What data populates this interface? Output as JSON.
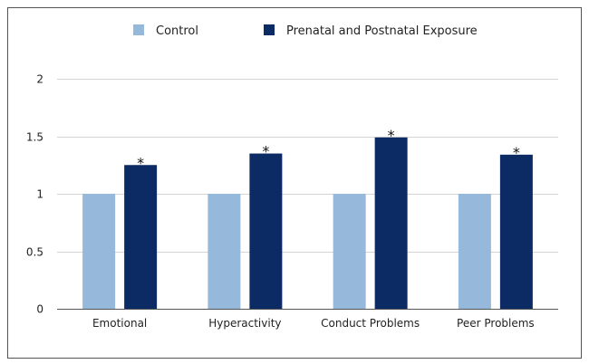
{
  "chart_data": {
    "type": "bar",
    "title": "",
    "xlabel": "",
    "ylabel": "",
    "categories": [
      "Emotional",
      "Hyperactivity",
      "Conduct Problems",
      "Peer Problems"
    ],
    "series": [
      {
        "name": "Control",
        "color": "#95b8db",
        "values": [
          1,
          1,
          1,
          1
        ]
      },
      {
        "name": "Prenatal and Postnatal Exposure",
        "color": "#0c2a63",
        "values": [
          1.25,
          1.35,
          1.49,
          1.34
        ]
      }
    ],
    "annotations": [
      "*",
      "*",
      "*",
      "*"
    ],
    "yticks": [
      "0",
      "0.5",
      "1",
      "1.5",
      "2"
    ],
    "ylim": [
      0,
      2
    ],
    "grid": true,
    "legend_position": "top"
  }
}
